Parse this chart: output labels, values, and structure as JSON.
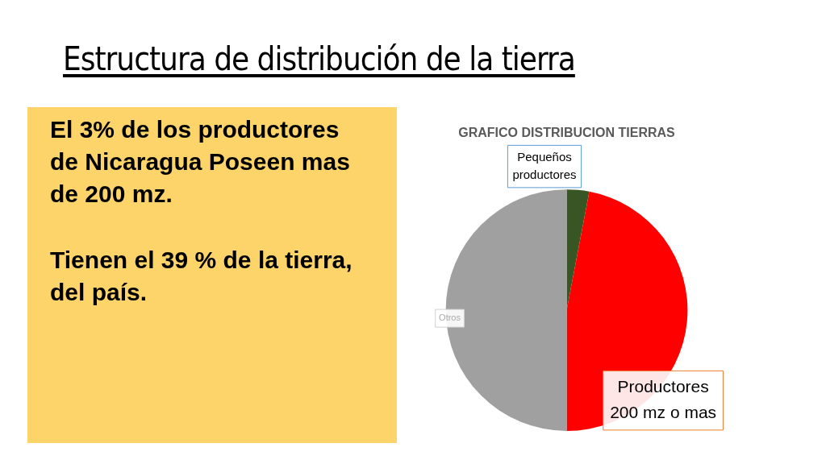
{
  "chart_data": {
    "type": "pie",
    "title": "Estructura de distribución de la tierra",
    "subtitle": "GRAFICO DISTRIBUCION TIERRAS",
    "categories": [
      "Pequeños productores",
      "Productores 200 mz o mas",
      "Otros"
    ],
    "values": [
      3,
      47,
      50
    ],
    "colors": [
      "#375623",
      "#ff0000",
      "#a0a0a0"
    ],
    "legend": false,
    "annotations": [
      "El 3% de los productores de Nicaragua  Poseen mas de 200 mz.",
      "Tienen el 39 % de la tierra, del país."
    ]
  }
}
